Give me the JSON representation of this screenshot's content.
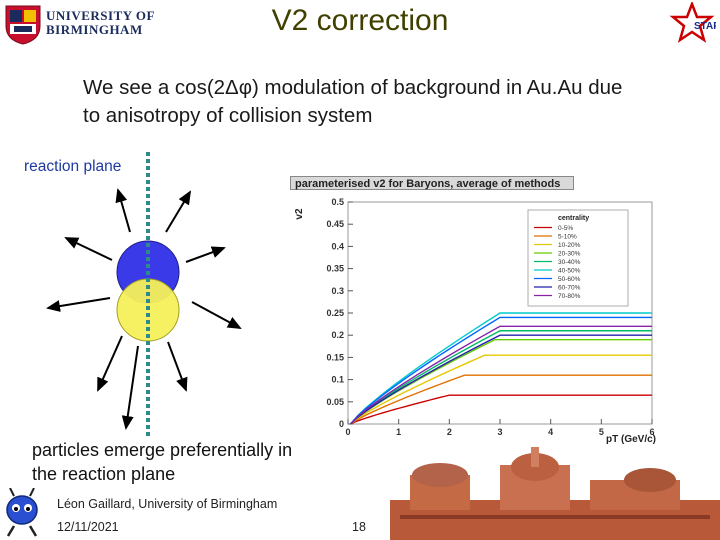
{
  "header": {
    "title": "V2 correction",
    "university_line1": "UNIVERSITY OF",
    "university_line2": "BIRMINGHAM",
    "star_logo_text": "STAR"
  },
  "body": {
    "subtitle": "We see a cos(2Δφ) modulation of background in Au.Au due to anisotropy of collision system",
    "reaction_plane_label": "reaction plane",
    "particles_text": "particles emerge preferentially in the reaction plane"
  },
  "footer": {
    "author": "Léon Gaillard, University of Birmingham",
    "date": "12/11/2021",
    "page": "18"
  },
  "colors": {
    "title": "#404000",
    "reaction_plane": "#1e3aa0",
    "top_nucleus": "#3a3ae8",
    "bottom_nucleus": "#f5f05a",
    "dotted_line": "#2e8b8b"
  },
  "chart_data": {
    "type": "line",
    "title": "parameterised v2 for Baryons, average of methods",
    "xlabel": "pT (GeV/c)",
    "ylabel": "v2",
    "xlim": [
      0,
      6
    ],
    "ylim": [
      0,
      0.5
    ],
    "x_ticks": [
      "0",
      "1",
      "2",
      "3",
      "4",
      "5",
      "6"
    ],
    "y_ticks": [
      "0",
      "0.05",
      "0.1",
      "0.15",
      "0.2",
      "0.25",
      "0.3",
      "0.35",
      "0.4",
      "0.45",
      "0.5"
    ],
    "legend_title": "centrality",
    "legend_position": "top-right",
    "series": [
      {
        "name": "0-5%",
        "color": "#cc0000",
        "plateau": 0.065,
        "plateau_start": 2.0
      },
      {
        "name": "5-10%",
        "color": "#e07000",
        "plateau": 0.11,
        "plateau_start": 2.3
      },
      {
        "name": "10-20%",
        "color": "#e6c800",
        "plateau": 0.155,
        "plateau_start": 2.7
      },
      {
        "name": "20-30%",
        "color": "#66cc00",
        "plateau": 0.19,
        "plateau_start": 2.9
      },
      {
        "name": "30-40%",
        "color": "#00bb66",
        "plateau": 0.21,
        "plateau_start": 3.0
      },
      {
        "name": "40-50%",
        "color": "#00cccc",
        "plateau": 0.25,
        "plateau_start": 3.0
      },
      {
        "name": "50-60%",
        "color": "#0066ff",
        "plateau": 0.24,
        "plateau_start": 3.0
      },
      {
        "name": "60-70%",
        "color": "#2222aa",
        "plateau": 0.2,
        "plateau_start": 3.0
      },
      {
        "name": "70-80%",
        "color": "#8822aa",
        "plateau": 0.22,
        "plateau_start": 3.0
      }
    ]
  }
}
